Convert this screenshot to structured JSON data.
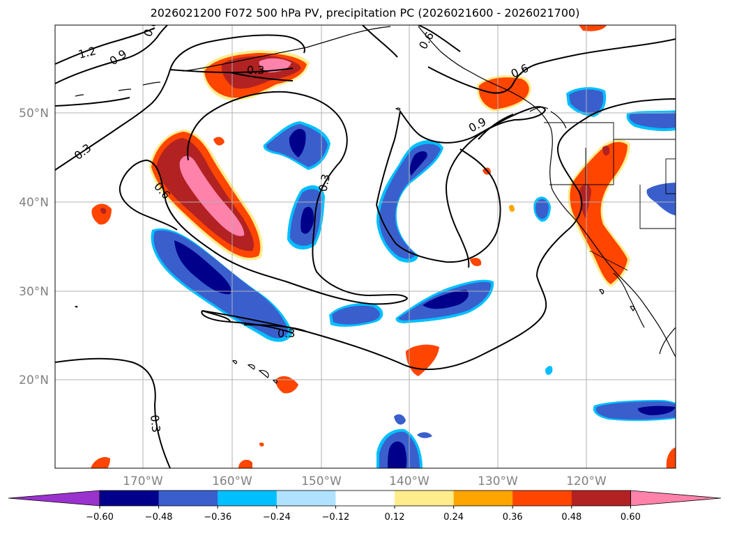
{
  "title": "2026021200 F072 500 hPa PV, precipitation PC (2026021600 - 2026021700)",
  "map": {
    "lat_labels": [
      "50°N",
      "40°N",
      "30°N",
      "20°N"
    ],
    "lon_labels": [
      "170°W",
      "160°W",
      "150°W",
      "140°W",
      "130°W",
      "120°W"
    ],
    "gridlines": true,
    "contour_labels": [
      "1.2",
      "0.9",
      "0.6",
      "0.3",
      "0.3",
      "0.6",
      "0.3",
      "0.6",
      "0.9",
      "0.6",
      "0.3",
      "0.3"
    ],
    "colors": {
      "land_outline": "#000000",
      "grid": "#b0b0b0",
      "contour": "#000000"
    }
  },
  "colorbar": {
    "ticks": [
      "−0.60",
      "−0.48",
      "−0.36",
      "−0.24",
      "−0.12",
      "0.12",
      "0.24",
      "0.36",
      "0.48",
      "0.60"
    ],
    "colors": [
      "#9a32cd",
      "#00008b",
      "#3a5fcd",
      "#00bfff",
      "#b0e2ff",
      "#ffffff",
      "#ffec8b",
      "#ffa500",
      "#ff4500",
      "#b22222",
      "#ff82ab"
    ]
  }
}
